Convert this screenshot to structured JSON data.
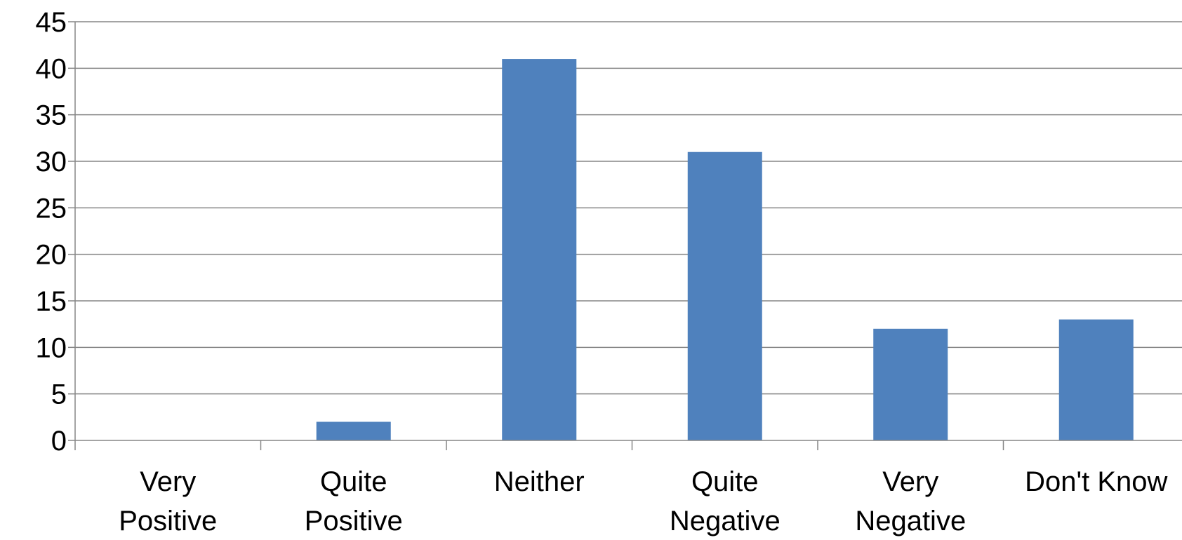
{
  "chart_data": {
    "type": "bar",
    "categories": [
      [
        "Very",
        "Positive"
      ],
      [
        "Quite",
        "Positive"
      ],
      [
        "Neither"
      ],
      [
        "Quite",
        "Negative"
      ],
      [
        "Very",
        "Negative"
      ],
      [
        "Don't Know"
      ]
    ],
    "values": [
      0,
      2,
      41,
      31,
      12,
      13
    ],
    "ylim": [
      0,
      45
    ],
    "yticks": [
      "0",
      "5",
      "10",
      "15",
      "20",
      "25",
      "30",
      "35",
      "40",
      "45"
    ],
    "grid": true,
    "legend": "none",
    "colors": {
      "bar": "#4F81BD",
      "grid": "#868686",
      "axis": "#868686",
      "text": "#000000"
    }
  }
}
